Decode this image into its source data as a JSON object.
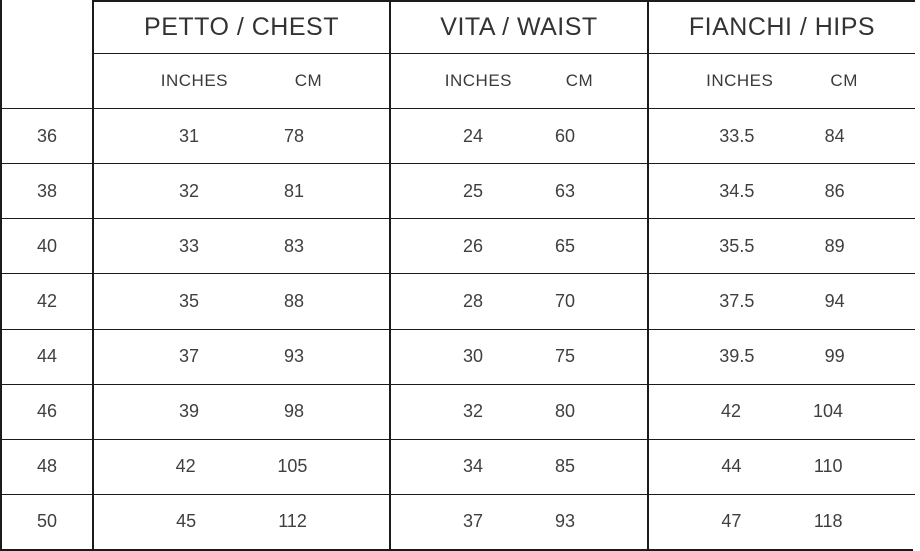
{
  "size_chart": {
    "corner_label": "",
    "groups": [
      {
        "id": "chest",
        "label": "PETTO / CHEST"
      },
      {
        "id": "waist",
        "label": "VITA / WAIST"
      },
      {
        "id": "hips",
        "label": "FIANCHI / HIPS"
      }
    ],
    "unit_headers": {
      "inches": "INCHES",
      "cm": "CM"
    },
    "rows": [
      {
        "size": "36",
        "chest": {
          "inches": "31",
          "cm": "78"
        },
        "waist": {
          "inches": "24",
          "cm": "60"
        },
        "hips": {
          "inches": "33.5",
          "cm": "84"
        }
      },
      {
        "size": "38",
        "chest": {
          "inches": "32",
          "cm": "81"
        },
        "waist": {
          "inches": "25",
          "cm": "63"
        },
        "hips": {
          "inches": "34.5",
          "cm": "86"
        }
      },
      {
        "size": "40",
        "chest": {
          "inches": "33",
          "cm": "83"
        },
        "waist": {
          "inches": "26",
          "cm": "65"
        },
        "hips": {
          "inches": "35.5",
          "cm": "89"
        }
      },
      {
        "size": "42",
        "chest": {
          "inches": "35",
          "cm": "88"
        },
        "waist": {
          "inches": "28",
          "cm": "70"
        },
        "hips": {
          "inches": "37.5",
          "cm": "94"
        }
      },
      {
        "size": "44",
        "chest": {
          "inches": "37",
          "cm": "93"
        },
        "waist": {
          "inches": "30",
          "cm": "75"
        },
        "hips": {
          "inches": "39.5",
          "cm": "99"
        }
      },
      {
        "size": "46",
        "chest": {
          "inches": "39",
          "cm": "98"
        },
        "waist": {
          "inches": "32",
          "cm": "80"
        },
        "hips": {
          "inches": "42",
          "cm": "104"
        }
      },
      {
        "size": "48",
        "chest": {
          "inches": "42",
          "cm": "105"
        },
        "waist": {
          "inches": "34",
          "cm": "85"
        },
        "hips": {
          "inches": "44",
          "cm": "110"
        }
      },
      {
        "size": "50",
        "chest": {
          "inches": "45",
          "cm": "112"
        },
        "waist": {
          "inches": "37",
          "cm": "93"
        },
        "hips": {
          "inches": "47",
          "cm": "118"
        }
      }
    ],
    "colors": {
      "border": "#1b1b1b",
      "header_text": "#333333",
      "data_text": "#3f3f3f",
      "background": "#ffffff"
    }
  }
}
